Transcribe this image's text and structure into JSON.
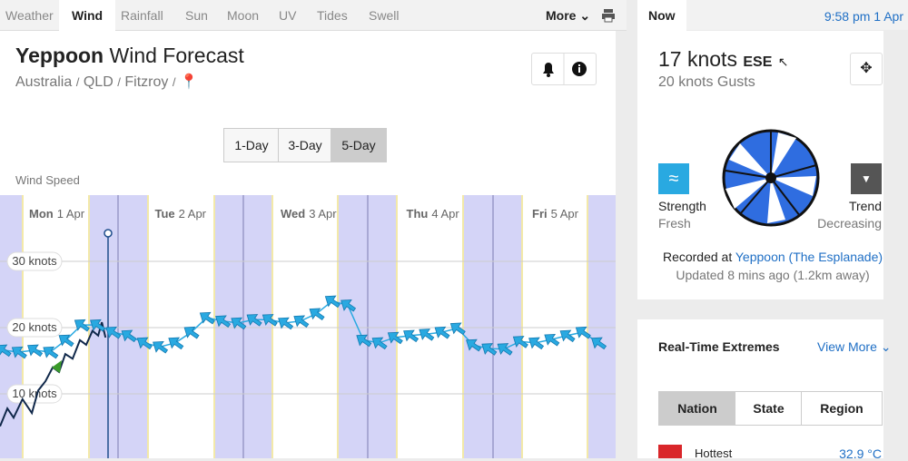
{
  "tabs": [
    "Weather",
    "Wind",
    "Rainfall",
    "Sun",
    "Moon",
    "UV",
    "Tides",
    "Swell"
  ],
  "more": "More",
  "header": {
    "place": "Yeppoon",
    "title": "Wind Forecast",
    "breadcrumb": [
      "Australia",
      "QLD",
      "Fitzroy"
    ]
  },
  "ranges": [
    "1-Day",
    "3-Day",
    "5-Day"
  ],
  "chart_data": {
    "type": "line",
    "title": "Wind Speed",
    "days": [
      {
        "day": "Mon",
        "date": "1 Apr"
      },
      {
        "day": "Tue",
        "date": "2 Apr"
      },
      {
        "day": "Wed",
        "date": "3 Apr"
      },
      {
        "day": "Thu",
        "date": "4 Apr"
      },
      {
        "day": "Fri",
        "date": "5 Apr"
      }
    ],
    "xlim": [
      0,
      120
    ],
    "ylim": [
      0,
      40
    ],
    "yticks": [
      {
        "value": 10,
        "label": "10 knots"
      },
      {
        "value": 20,
        "label": "20 knots"
      },
      {
        "value": 30,
        "label": "30 knots"
      }
    ],
    "grid": true,
    "series": [
      {
        "color": "#29a9e1",
        "x": [
          2,
          5,
          8,
          11,
          14,
          17,
          20,
          23,
          26,
          29,
          32,
          35,
          38,
          41,
          44,
          47,
          50,
          53,
          56,
          59,
          62,
          65,
          68,
          71,
          74,
          77,
          80,
          83,
          86,
          89,
          92,
          95,
          98,
          101,
          104,
          107,
          110,
          113,
          116
        ],
        "values": [
          16.6,
          16.3,
          16.6,
          16.3,
          18.1,
          20.4,
          20.4,
          19.3,
          18.8,
          17.7,
          17.1,
          17.7,
          19.3,
          21.5,
          21.0,
          20.7,
          21.2,
          21.2,
          20.7,
          21.0,
          22.1,
          24.0,
          23.4,
          18.1,
          17.7,
          18.5,
          18.8,
          19.0,
          19.3,
          19.9,
          17.4,
          16.8,
          16.8,
          17.9,
          17.7,
          18.2,
          18.8,
          19.3,
          17.7
        ]
      },
      {
        "color": "#10284a",
        "x": [
          1.4,
          2.8,
          4.0,
          5.7,
          7.5,
          8.7,
          10.1,
          11.5,
          12.7,
          13.9,
          15.3,
          16.7,
          17.9,
          19.1,
          20.2,
          20.9,
          21.6
        ],
        "values": [
          5.1,
          7.8,
          6.4,
          9.2,
          7.1,
          10.5,
          11.9,
          14.0,
          13.3,
          16.0,
          15.3,
          18.1,
          17.4,
          19.5,
          18.8,
          20.8,
          18.5
        ]
      }
    ]
  },
  "now": {
    "label": "Now",
    "time": "9:58 pm 1 Apr",
    "speed": "17 knots",
    "direction": "ESE",
    "gusts": "20 knots Gusts",
    "strength_label": "Strength",
    "strength": "Fresh",
    "trend_label": "Trend",
    "trend": "Decreasing",
    "recorded": "Recorded at",
    "station": "Yeppoon (The Esplanade)",
    "updated": "Updated 8 mins ago (1.2km away)"
  },
  "extremes": {
    "title": "Real-Time Extremes",
    "view_more": "View More",
    "tabs": [
      "Nation",
      "State",
      "Region"
    ],
    "row": {
      "label": "Hottest",
      "value": "32.9 °C"
    }
  }
}
